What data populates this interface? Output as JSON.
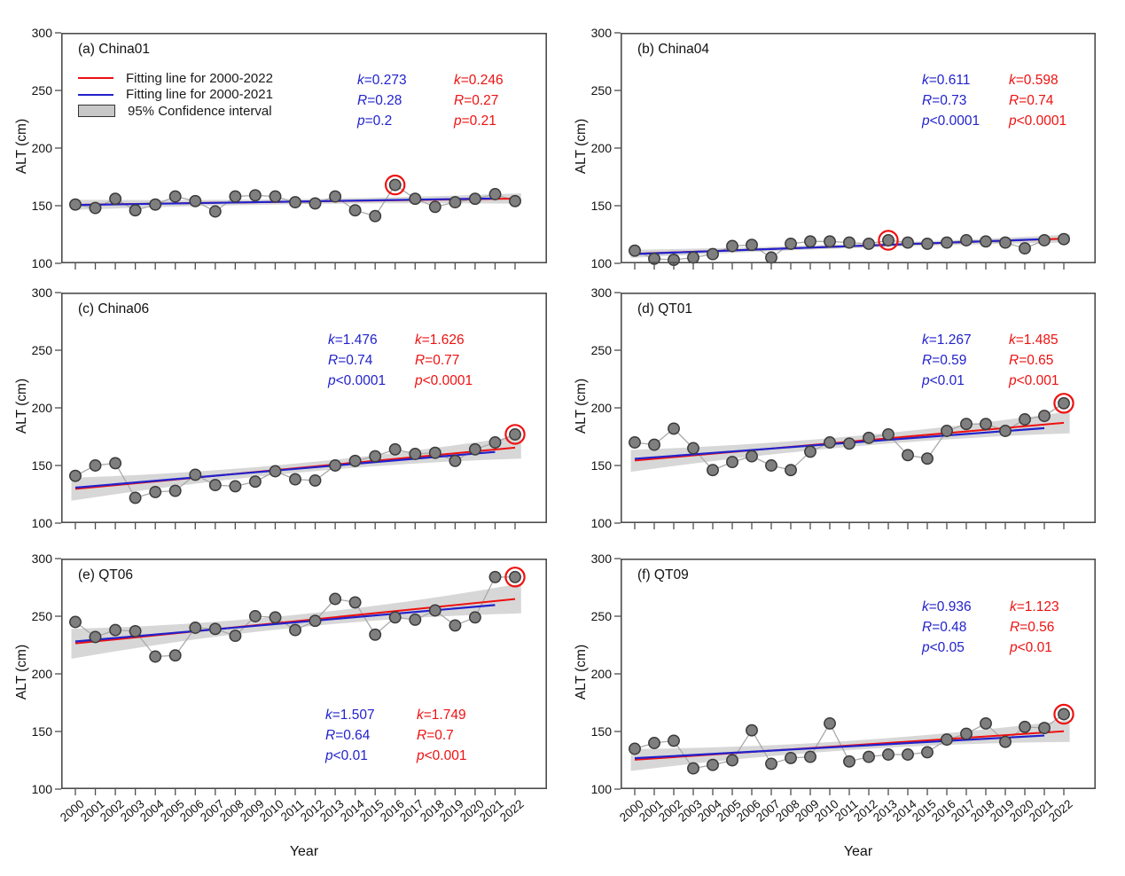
{
  "figure": {
    "background": "#ffffff",
    "ylabel": "ALT (cm)",
    "xlabel": "Year",
    "colors": {
      "red_fit": "#ee1111",
      "blue_fit": "#2222cc",
      "point_fill": "#7f7f7f",
      "point_stroke": "#3a3a3a",
      "connector": "#a9a9a9",
      "ci_band": "#c8c8c8",
      "axis": "#4d4d4d",
      "text": "#111111",
      "highlight_ring": "#ee1111"
    },
    "legend": {
      "items": [
        {
          "icon": "red-line-swatch",
          "label": "Fitting line for 2000-2022"
        },
        {
          "icon": "blue-line-swatch",
          "label": "Fitting line for 2000-2021"
        },
        {
          "icon": "ci-box-swatch",
          "label": "95% Confidence interval"
        }
      ]
    }
  },
  "chart_data": {
    "type": "scatter",
    "x_years": [
      2000,
      2001,
      2002,
      2003,
      2004,
      2005,
      2006,
      2007,
      2008,
      2009,
      2010,
      2011,
      2012,
      2013,
      2014,
      2015,
      2016,
      2017,
      2018,
      2019,
      2020,
      2021,
      2022
    ],
    "ylim": [
      100,
      300
    ],
    "yticks": [
      100,
      150,
      200,
      250,
      300
    ],
    "grid": false,
    "panels": [
      {
        "id": "a",
        "title": "(a) China01",
        "values": [
          151,
          148,
          156,
          146,
          151,
          158,
          154,
          145,
          158,
          159,
          158,
          153,
          152,
          158,
          146,
          141,
          168,
          156,
          149,
          153,
          156,
          160,
          154
        ],
        "circled_year": 2016,
        "fit_blue": {
          "x": [
            2000,
            2021
          ],
          "y": [
            150.6,
            156.3
          ]
        },
        "fit_red": {
          "x": [
            2000,
            2022
          ],
          "y": [
            150.8,
            156.2
          ]
        },
        "ci_halfwidth": {
          "end": 4.5,
          "mid": 2.2
        },
        "stats": {
          "blue": {
            "rows": [
              {
                "sym": "k",
                "val": "=0.273"
              },
              {
                "sym": "R",
                "val": "=0.28"
              },
              {
                "sym": "p",
                "val": "=0.2"
              }
            ]
          },
          "red": {
            "rows": [
              {
                "sym": "k",
                "val": "=0.246"
              },
              {
                "sym": "R",
                "val": "=0.27"
              },
              {
                "sym": "p",
                "val": "=0.21"
              }
            ]
          }
        }
      },
      {
        "id": "b",
        "title": "(b) China04",
        "values": [
          111,
          104,
          103,
          105,
          108,
          115,
          116,
          105,
          117,
          119,
          119,
          118,
          117,
          120,
          118,
          117,
          118,
          120,
          119,
          118,
          113,
          120,
          121
        ],
        "circled_year": 2013,
        "fit_blue": {
          "x": [
            2000,
            2021
          ],
          "y": [
            108.1,
            121.0
          ]
        },
        "fit_red": {
          "x": [
            2000,
            2022
          ],
          "y": [
            108.3,
            121.4
          ]
        },
        "ci_halfwidth": {
          "end": 3.5,
          "mid": 1.7
        },
        "stats": {
          "blue": {
            "rows": [
              {
                "sym": "k",
                "val": "=0.611"
              },
              {
                "sym": "R",
                "val": "=0.73"
              },
              {
                "sym": "p",
                "val": "<0.0001"
              }
            ]
          },
          "red": {
            "rows": [
              {
                "sym": "k",
                "val": "=0.598"
              },
              {
                "sym": "R",
                "val": "=0.74"
              },
              {
                "sym": "p",
                "val": "<0.0001"
              }
            ]
          }
        }
      },
      {
        "id": "c",
        "title": "(c) China06",
        "values": [
          141,
          150,
          152,
          122,
          127,
          128,
          142,
          133,
          132,
          136,
          145,
          138,
          137,
          150,
          154,
          158,
          164,
          160,
          161,
          154,
          164,
          170,
          177
        ],
        "circled_year": 2022,
        "fit_blue": {
          "x": [
            2000,
            2021
          ],
          "y": [
            130.8,
            161.8
          ]
        },
        "fit_red": {
          "x": [
            2000,
            2022
          ],
          "y": [
            129.7,
            165.5
          ]
        },
        "ci_halfwidth": {
          "end": 10,
          "mid": 4
        },
        "stats": {
          "blue": {
            "rows": [
              {
                "sym": "k",
                "val": "=1.476"
              },
              {
                "sym": "R",
                "val": "=0.74"
              },
              {
                "sym": "p",
                "val": "<0.0001"
              }
            ]
          },
          "red": {
            "rows": [
              {
                "sym": "k",
                "val": "=1.626"
              },
              {
                "sym": "R",
                "val": "=0.77"
              },
              {
                "sym": "p",
                "val": "<0.0001"
              }
            ]
          }
        }
      },
      {
        "id": "d",
        "title": "(d) QT01",
        "values": [
          170,
          168,
          182,
          165,
          146,
          153,
          158,
          150,
          146,
          162,
          170,
          169,
          174,
          177,
          159,
          156,
          180,
          186,
          186,
          180,
          190,
          193,
          204
        ],
        "circled_year": 2022,
        "fit_blue": {
          "x": [
            2000,
            2021
          ],
          "y": [
            155.8,
            182.4
          ]
        },
        "fit_red": {
          "x": [
            2000,
            2022
          ],
          "y": [
            154.3,
            187.0
          ]
        },
        "ci_halfwidth": {
          "end": 9.5,
          "mid": 4.5
        },
        "stats": {
          "blue": {
            "rows": [
              {
                "sym": "k",
                "val": "=1.267"
              },
              {
                "sym": "R",
                "val": "=0.59"
              },
              {
                "sym": "p",
                "val": "<0.01"
              }
            ]
          },
          "red": {
            "rows": [
              {
                "sym": "k",
                "val": "=1.485"
              },
              {
                "sym": "R",
                "val": "=0.65"
              },
              {
                "sym": "p",
                "val": "<0.001"
              }
            ]
          }
        }
      },
      {
        "id": "e",
        "title": "(e) QT06",
        "values": [
          245,
          232,
          238,
          237,
          215,
          216,
          240,
          239,
          233,
          250,
          249,
          238,
          246,
          265,
          262,
          234,
          249,
          247,
          255,
          242,
          249,
          284,
          284
        ],
        "circled_year": 2022,
        "fit_blue": {
          "x": [
            2000,
            2021
          ],
          "y": [
            228.1,
            259.7
          ]
        },
        "fit_red": {
          "x": [
            2000,
            2022
          ],
          "y": [
            226.4,
            264.9
          ]
        },
        "ci_halfwidth": {
          "end": 13,
          "mid": 5.5
        },
        "stats": {
          "blue": {
            "rows": [
              {
                "sym": "k",
                "val": "=1.507"
              },
              {
                "sym": "R",
                "val": "=0.64"
              },
              {
                "sym": "p",
                "val": "<0.01"
              }
            ]
          },
          "red": {
            "rows": [
              {
                "sym": "k",
                "val": "=1.749"
              },
              {
                "sym": "R",
                "val": "=0.7"
              },
              {
                "sym": "p",
                "val": "<0.001"
              }
            ]
          }
        }
      },
      {
        "id": "f",
        "title": "(f) QT09",
        "values": [
          135,
          140,
          142,
          118,
          121,
          125,
          151,
          122,
          127,
          128,
          157,
          124,
          128,
          130,
          130,
          132,
          143,
          148,
          157,
          141,
          154,
          153,
          165
        ],
        "circled_year": 2022,
        "fit_blue": {
          "x": [
            2000,
            2021
          ],
          "y": [
            126.8,
            146.5
          ]
        },
        "fit_red": {
          "x": [
            2000,
            2022
          ],
          "y": [
            125.5,
            150.2
          ]
        },
        "ci_halfwidth": {
          "end": 9.5,
          "mid": 4
        },
        "stats": {
          "blue": {
            "rows": [
              {
                "sym": "k",
                "val": "=0.936"
              },
              {
                "sym": "R",
                "val": "=0.48"
              },
              {
                "sym": "p",
                "val": "<0.05"
              }
            ]
          },
          "red": {
            "rows": [
              {
                "sym": "k",
                "val": "=1.123"
              },
              {
                "sym": "R",
                "val": "=0.56"
              },
              {
                "sym": "p",
                "val": "<0.01"
              }
            ]
          }
        }
      }
    ]
  }
}
